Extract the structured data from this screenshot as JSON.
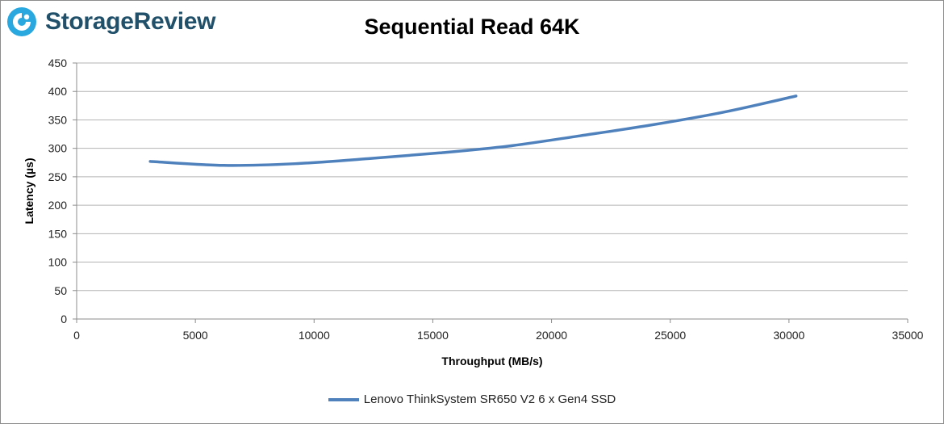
{
  "brand": {
    "name": "StorageReview",
    "logo_icon": "storagereview-logo-icon",
    "color": "#21506a",
    "accent": "#29a8e0"
  },
  "chart_data": {
    "type": "line",
    "title": "Sequential Read 64K",
    "xlabel": "Throughput (MB/s)",
    "ylabel": "Latency (µs)",
    "xlim": [
      0,
      35000
    ],
    "ylim": [
      0,
      450
    ],
    "xticks": [
      0,
      5000,
      10000,
      15000,
      20000,
      25000,
      30000,
      35000
    ],
    "yticks": [
      0,
      50,
      100,
      150,
      200,
      250,
      300,
      350,
      400,
      450
    ],
    "grid": true,
    "legend_position": "bottom",
    "series": [
      {
        "name": "Lenovo ThinkSystem SR650 V2 6 x Gen4 SSD",
        "color": "#4f81bd",
        "points": [
          [
            3100,
            277
          ],
          [
            6200,
            270
          ],
          [
            9200,
            273
          ],
          [
            12300,
            282
          ],
          [
            15300,
            292
          ],
          [
            18200,
            304
          ],
          [
            21200,
            322
          ],
          [
            24200,
            341
          ],
          [
            27300,
            364
          ],
          [
            30300,
            392
          ]
        ]
      }
    ]
  }
}
